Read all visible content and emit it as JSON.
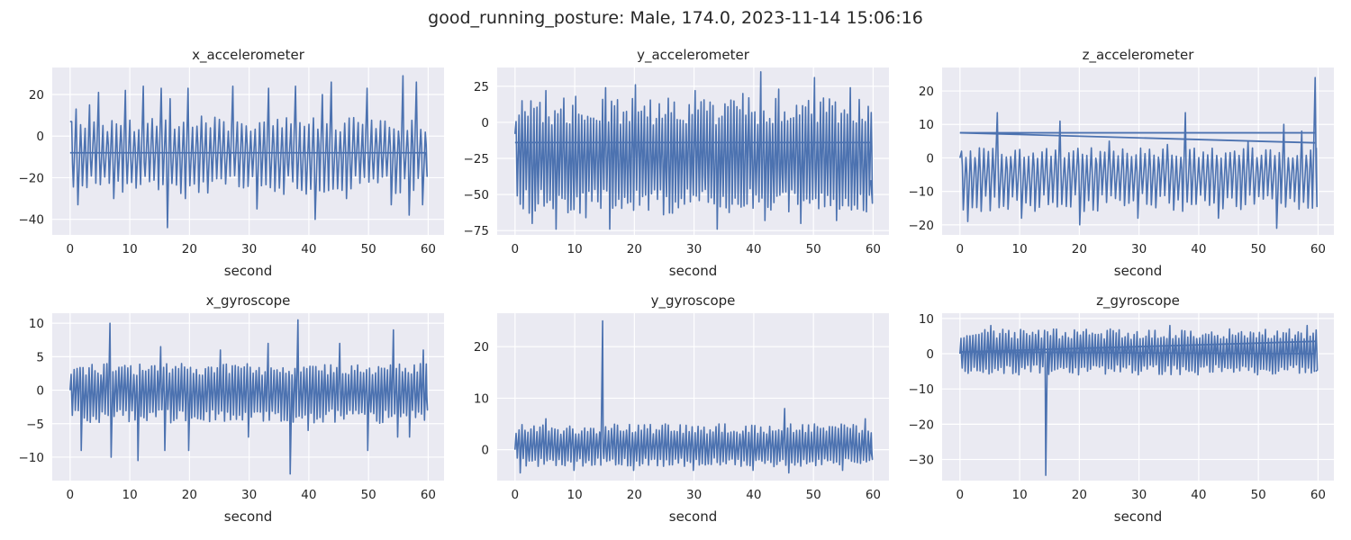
{
  "figure": {
    "title": "good_running_posture: Male, 174.0, 2023-11-14 15:06:16"
  },
  "colors": {
    "line": "#4c72b0",
    "axes_background": "#eaeaf2",
    "grid": "#ffffff",
    "text": "#262626"
  },
  "chart_data": [
    {
      "type": "line",
      "title": "x_accelerometer",
      "xlabel": "second",
      "ylabel": "",
      "xlim": [
        -2.99,
        62.65
      ],
      "ylim": [
        -47.5,
        33.0
      ],
      "xticks": [
        0,
        10,
        20,
        30,
        40,
        50,
        60
      ],
      "yticks": [
        -40,
        -20,
        0,
        20
      ],
      "grid": true,
      "series": [
        {
          "x": [
            0,
            0.6,
            1.0,
            1.5,
            3,
            5,
            7,
            9,
            11,
            12,
            13,
            15,
            16,
            17,
            19,
            20,
            23,
            27,
            31,
            33,
            36,
            38,
            41,
            42,
            44,
            46,
            50,
            54,
            56,
            57,
            58,
            59,
            59.6
          ],
          "y": [
            7,
            -8,
            13,
            -33,
            15,
            21,
            -30,
            22,
            -25,
            24,
            -20,
            23,
            -44,
            18,
            -30,
            23,
            -22,
            24,
            -35,
            23,
            -28,
            24,
            -40,
            20,
            26,
            -30,
            23,
            -33,
            29,
            -38,
            26,
            -33,
            -8
          ],
          "x_label": "",
          "note_oscillation": {
            "period_s": 0.75,
            "center": -8,
            "amp_upper": 18,
            "amp_lower": 20,
            "baseline_y": -8,
            "baseline_x_range": [
              0,
              59.7
            ]
          }
        }
      ]
    },
    {
      "type": "line",
      "title": "y_accelerometer",
      "xlabel": "second",
      "ylabel": "",
      "xlim": [
        -2.99,
        62.65
      ],
      "ylim": [
        -78.0,
        38.0
      ],
      "xticks": [
        0,
        10,
        20,
        30,
        40,
        50,
        60
      ],
      "yticks": [
        -75,
        -50,
        -25,
        0,
        25
      ],
      "grid": true,
      "series": [
        {
          "x": [
            0,
            0.5,
            1,
            3,
            5,
            7,
            10,
            12,
            15,
            16,
            20,
            25,
            30,
            34,
            38,
            41,
            42,
            44,
            48,
            50,
            54,
            56,
            59,
            59.6
          ],
          "y": [
            -8,
            -14,
            15,
            -70,
            22,
            -74,
            18,
            -66,
            24,
            -74,
            26,
            -64,
            22,
            -74,
            20,
            35,
            -68,
            23,
            -70,
            31,
            -68,
            24,
            -62,
            -40
          ],
          "note_oscillation": {
            "period_s": 0.5,
            "center": -25,
            "amp_upper": 42,
            "amp_lower": 38,
            "baseline_y": -14,
            "baseline_x_range": [
              0,
              59.7
            ]
          }
        }
      ]
    },
    {
      "type": "line",
      "title": "z_accelerometer",
      "xlabel": "second",
      "ylabel": "",
      "xlim": [
        -2.99,
        62.65
      ],
      "ylim": [
        -23.0,
        27.0
      ],
      "xticks": [
        0,
        10,
        20,
        30,
        40,
        50,
        60
      ],
      "yticks": [
        -20,
        -10,
        0,
        10,
        20
      ],
      "grid": true,
      "series": [
        {
          "x": [
            0,
            0.5,
            1,
            3,
            6.5,
            10,
            16.5,
            20,
            25,
            30,
            35,
            38,
            43,
            48,
            53,
            54.5,
            57,
            59,
            59.2,
            59.5,
            59.7
          ],
          "y": [
            0,
            2,
            -19,
            3,
            13.5,
            -18,
            11,
            -20,
            5,
            -18,
            4,
            13.5,
            -18,
            5,
            -21,
            10,
            8,
            -15,
            24,
            24,
            3
          ],
          "note_oscillation": {
            "period_s": 0.75,
            "center": -4,
            "amp_upper": 7,
            "amp_lower": 12
          },
          "trend_lines": [
            {
              "from": [
                0,
                7.5
              ],
              "to": [
                59.5,
                7.5
              ]
            },
            {
              "from": [
                0,
                7.5
              ],
              "to": [
                59.5,
                4.5
              ]
            }
          ]
        }
      ]
    },
    {
      "type": "line",
      "title": "x_gyroscope",
      "xlabel": "second",
      "ylabel": "",
      "xlim": [
        -2.99,
        62.65
      ],
      "ylim": [
        -13.5,
        11.5
      ],
      "xticks": [
        0,
        10,
        20,
        30,
        40,
        50,
        60
      ],
      "yticks": [
        -10,
        -5,
        0,
        5,
        10
      ],
      "grid": true,
      "series": [
        {
          "x": [
            0,
            0.5,
            2,
            6.5,
            7,
            11.5,
            15,
            16,
            20,
            25,
            30,
            33,
            36.8,
            38,
            40,
            45,
            50,
            54,
            55,
            57,
            59,
            59.6
          ],
          "y": [
            0,
            1.5,
            -9,
            10,
            -10,
            -10.5,
            6.5,
            -9,
            -9,
            6,
            -7,
            7,
            -12.5,
            10.5,
            -6,
            7,
            -9,
            9,
            -7,
            -7,
            6,
            0
          ],
          "note_oscillation": {
            "period_s": 0.5,
            "center": 0,
            "amp_upper": 4,
            "amp_lower": 5
          }
        }
      ]
    },
    {
      "type": "line",
      "title": "y_gyroscope",
      "xlabel": "second",
      "ylabel": "",
      "xlim": [
        -2.99,
        62.65
      ],
      "ylim": [
        -6.0,
        26.5
      ],
      "xticks": [
        0,
        10,
        20,
        30,
        40,
        50,
        60
      ],
      "yticks": [
        0,
        10,
        20
      ],
      "grid": true,
      "series": [
        {
          "x": [
            0,
            0.5,
            1,
            5,
            10,
            14.4,
            14.5,
            14.7,
            20,
            25,
            30,
            35,
            40,
            45.3,
            46,
            50,
            55,
            58.5,
            59.6
          ],
          "y": [
            0,
            -1,
            -4.5,
            6,
            -4,
            -3,
            25,
            5,
            -4,
            5,
            -4,
            5,
            -4,
            8,
            -4.5,
            5,
            -4,
            6,
            0
          ],
          "note_oscillation": {
            "period_s": 0.5,
            "center": 0.5,
            "amp_upper": 4.5,
            "amp_lower": 3.8
          }
        }
      ]
    },
    {
      "type": "line",
      "title": "z_gyroscope",
      "xlabel": "second",
      "ylabel": "",
      "xlim": [
        -2.99,
        62.65
      ],
      "ylim": [
        -36.0,
        11.5
      ],
      "xticks": [
        0,
        10,
        20,
        30,
        40,
        50,
        60
      ],
      "yticks": [
        -30,
        -20,
        -10,
        0,
        10
      ],
      "grid": true,
      "series": [
        {
          "x": [
            0,
            0.5,
            1,
            5,
            10,
            14.3,
            14.5,
            14.7,
            20,
            25,
            30,
            35,
            40,
            45,
            50,
            55,
            58,
            59.6
          ],
          "y": [
            0,
            2,
            -5,
            8,
            -6,
            -5,
            -34.5,
            6,
            -6,
            7,
            -6,
            8,
            -6,
            7,
            -6,
            7,
            8,
            -5
          ],
          "note_oscillation": {
            "period_s": 0.5,
            "center": 0.5,
            "amp_upper": 6.5,
            "amp_lower": 6.5
          },
          "trend_lines": [
            {
              "from": [
                0,
                0.5
              ],
              "to": [
                59.5,
                3.5
              ]
            },
            {
              "from": [
                0,
                0.5
              ],
              "to": [
                59.5,
                0.0
              ]
            }
          ]
        }
      ]
    }
  ]
}
